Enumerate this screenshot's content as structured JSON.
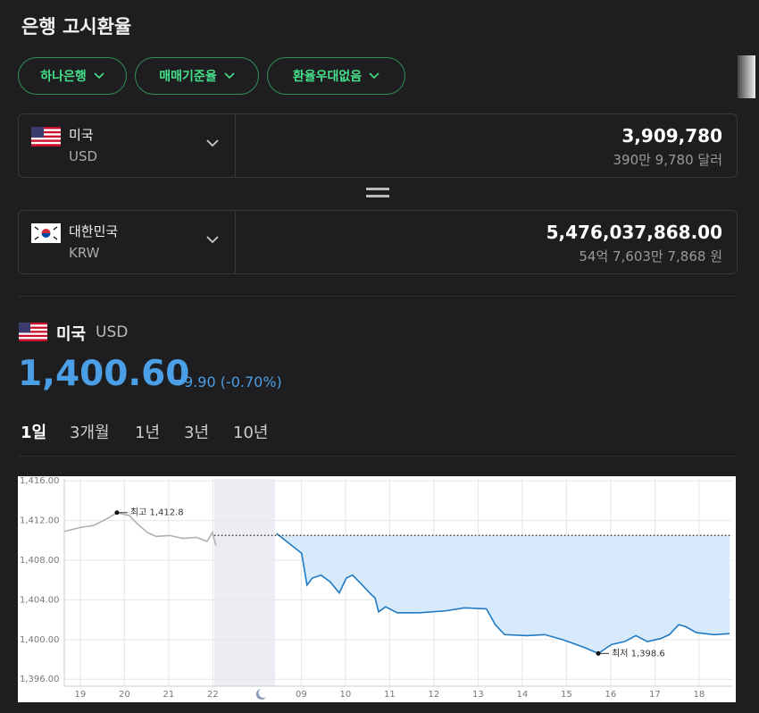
{
  "header": {
    "title": "은행 고시환율"
  },
  "filters": [
    "하나은행",
    "매매기준율",
    "환율우대없음"
  ],
  "converter": {
    "from": {
      "country": "미국",
      "currency": "USD",
      "amount": "3,909,780",
      "amount_words": "390만 9,780 달러"
    },
    "to": {
      "country": "대한민국",
      "currency": "KRW",
      "amount": "5,476,037,868.00",
      "amount_words": "54억 7,603만 7,868 원"
    }
  },
  "summary": {
    "country": "미국",
    "currency": "USD",
    "rate": "1,400.60",
    "change": "9.90 (-0.70%)"
  },
  "tabs": [
    "1일",
    "3개월",
    "1년",
    "3년",
    "10년"
  ],
  "chart_data": {
    "type": "line",
    "xlim": [
      0.64,
      15.75
    ],
    "ylim": [
      1395.3,
      1416.2
    ],
    "yticks": [
      {
        "value": 1396,
        "label": "1,396.00"
      },
      {
        "value": 1400,
        "label": "1,400.00"
      },
      {
        "value": 1404,
        "label": "1,404.00"
      },
      {
        "value": 1408,
        "label": "1,408.00"
      },
      {
        "value": 1412,
        "label": "1,412.00"
      },
      {
        "value": 1416,
        "label": "1,416.00"
      }
    ],
    "xticks": [
      {
        "value": 1,
        "label": "19"
      },
      {
        "value": 2,
        "label": "20"
      },
      {
        "value": 3,
        "label": "21"
      },
      {
        "value": 4,
        "label": "22"
      },
      {
        "value": 6,
        "label": "09"
      },
      {
        "value": 7,
        "label": "10"
      },
      {
        "value": 8,
        "label": "11"
      },
      {
        "value": 9,
        "label": "12"
      },
      {
        "value": 10,
        "label": "13"
      },
      {
        "value": 11,
        "label": "14"
      },
      {
        "value": 12,
        "label": "15"
      },
      {
        "value": 13,
        "label": "16"
      },
      {
        "value": 14,
        "label": "17"
      },
      {
        "value": 15,
        "label": "18"
      }
    ],
    "grid": true,
    "night_range": [
      4.03,
      5.41
    ],
    "reference_line": 1410.5,
    "series": [
      {
        "color": "#b0b0b8",
        "fill": false,
        "x": [
          0.64,
          1.0,
          1.3,
          1.61,
          1.83,
          2.11,
          2.31,
          2.52,
          2.72,
          3.02,
          3.32,
          3.63,
          3.87,
          3.99,
          4.07
        ],
        "values": [
          1410.9,
          1411.3,
          1411.5,
          1412.2,
          1412.8,
          1412.5,
          1411.6,
          1410.8,
          1410.4,
          1410.5,
          1410.2,
          1410.3,
          1409.9,
          1410.8,
          1409.5
        ]
      },
      {
        "color": "#1f7ac4",
        "fill": true,
        "x": [
          5.44,
          6.01,
          6.13,
          6.25,
          6.45,
          6.66,
          6.86,
          7.02,
          7.16,
          7.36,
          7.57,
          7.67,
          7.75,
          7.91,
          8.17,
          8.68,
          9.28,
          9.69,
          10.19,
          10.39,
          10.6,
          11.1,
          11.51,
          11.91,
          12.41,
          12.72,
          13.02,
          13.32,
          13.57,
          13.83,
          14.13,
          14.33,
          14.54,
          14.7,
          14.94,
          15.34,
          15.69
        ],
        "values": [
          1410.7,
          1408.7,
          1405.5,
          1406.2,
          1406.5,
          1405.8,
          1404.7,
          1406.2,
          1406.5,
          1405.6,
          1404.6,
          1404.2,
          1402.8,
          1403.3,
          1402.7,
          1402.7,
          1402.9,
          1403.2,
          1403.1,
          1401.5,
          1400.5,
          1400.4,
          1400.5,
          1400.0,
          1399.2,
          1398.6,
          1399.5,
          1399.8,
          1400.4,
          1399.8,
          1400.1,
          1400.5,
          1401.5,
          1401.3,
          1400.7,
          1400.5,
          1400.6
        ]
      }
    ],
    "annotations": [
      {
        "text": "최고 1,412.8",
        "x": 1.83,
        "y": 1412.8
      },
      {
        "text": "최저 1,398.6",
        "x": 12.72,
        "y": 1398.6
      }
    ]
  }
}
